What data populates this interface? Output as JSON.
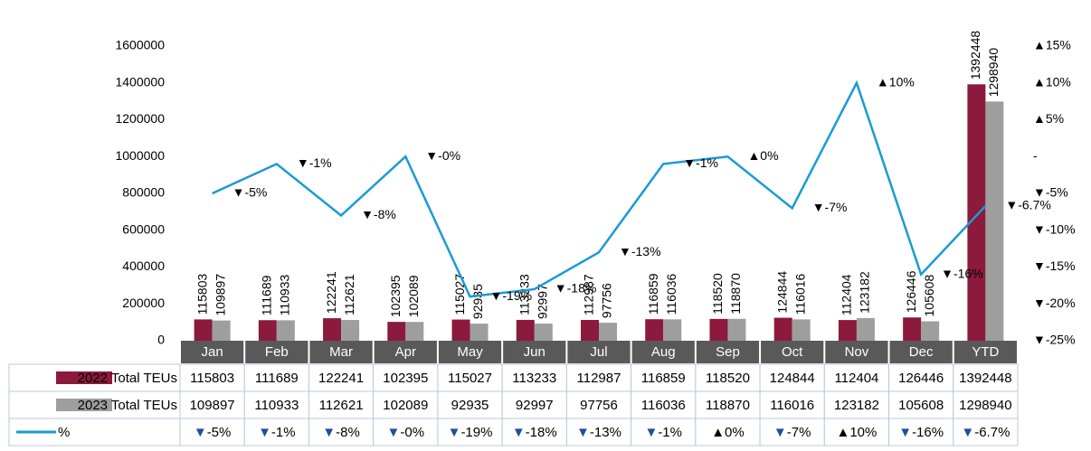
{
  "chart_data": {
    "type": "bar-line",
    "categories": [
      "Jan",
      "Feb",
      "Mar",
      "Apr",
      "May",
      "Jun",
      "Jul",
      "Aug",
      "Sep",
      "Oct",
      "Nov",
      "Dec",
      "YTD"
    ],
    "series": [
      {
        "name": "2022 Total TEUs",
        "color": "#8b1a3c",
        "type": "bar",
        "values": [
          115803,
          111689,
          122241,
          102395,
          115027,
          113233,
          112987,
          116859,
          118520,
          124844,
          112404,
          126446,
          1392448
        ]
      },
      {
        "name": "2023 Total TEUs",
        "color": "#9e9e9e",
        "type": "bar",
        "values": [
          109897,
          110933,
          112621,
          102089,
          92935,
          92997,
          97756,
          116036,
          118870,
          116016,
          123182,
          105608,
          1298940
        ]
      },
      {
        "name": "%",
        "color": "#1a9ad6",
        "type": "line",
        "axis": "y2",
        "values": [
          -5,
          -1,
          -8,
          0,
          -19,
          -18,
          -13,
          -1,
          0,
          -7,
          10,
          -16,
          -6.7
        ],
        "value_labels": [
          "▼-5%",
          "▼-1%",
          "▼-8%",
          "▼-0%",
          "▼-19%",
          "▼-18%",
          "▼-13%",
          "▼-1%",
          "▲0%",
          "▼-7%",
          "▲10%",
          "▼-16%",
          "▼-6.7%"
        ]
      }
    ],
    "ylim": [
      0,
      1600000
    ],
    "yticks": [
      0,
      200000,
      400000,
      600000,
      800000,
      1000000,
      1200000,
      1400000,
      1600000
    ],
    "y2lim": [
      -25,
      15
    ],
    "y2ticks": [
      {
        "value": 15,
        "label": "▲15%"
      },
      {
        "value": 10,
        "label": "▲10%"
      },
      {
        "value": 5,
        "label": "▲5%"
      },
      {
        "value": 0,
        "label": "-"
      },
      {
        "value": -5,
        "label": "▼-5%"
      },
      {
        "value": -10,
        "label": "▼-10%"
      },
      {
        "value": -15,
        "label": "▼-15%"
      },
      {
        "value": -20,
        "label": "▼-20%"
      },
      {
        "value": -25,
        "label": "▼-25%"
      }
    ],
    "grid": false
  }
}
